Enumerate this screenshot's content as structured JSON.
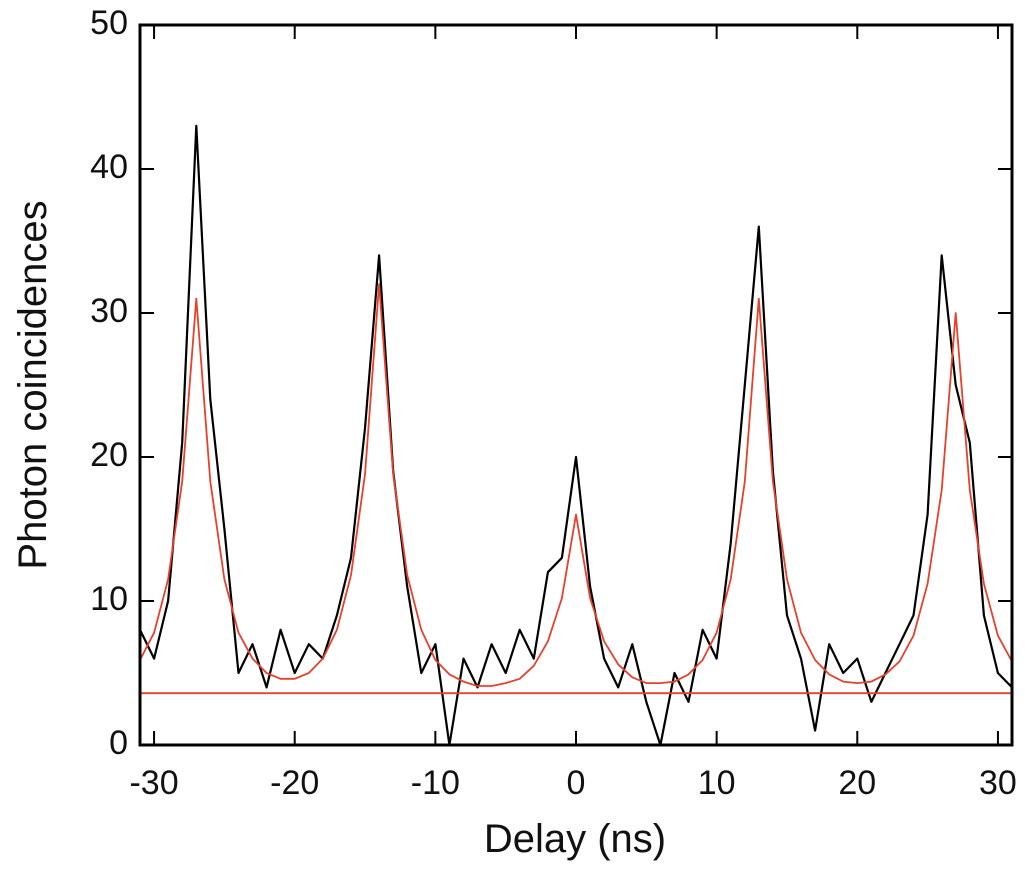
{
  "chart_data": {
    "type": "line",
    "xlabel": "Delay (ns)",
    "ylabel": "Photon coincidences",
    "x": [
      -31,
      -30,
      -29,
      -28,
      -27,
      -26,
      -25,
      -24,
      -23,
      -22,
      -21,
      -20,
      -19,
      -18,
      -17,
      -16,
      -15,
      -14,
      -13,
      -12,
      -11,
      -10,
      -9,
      -8,
      -7,
      -6,
      -5,
      -4,
      -3,
      -2,
      -1,
      0,
      1,
      2,
      3,
      4,
      5,
      6,
      7,
      8,
      9,
      10,
      11,
      12,
      13,
      14,
      15,
      16,
      17,
      18,
      19,
      20,
      21,
      22,
      23,
      24,
      25,
      26,
      27,
      28,
      29,
      30,
      31
    ],
    "series": [
      {
        "color": "#000000",
        "values": [
          8,
          6,
          10,
          21,
          43,
          24,
          15,
          5,
          7,
          4,
          8,
          5,
          7,
          6,
          9,
          13,
          22,
          34,
          19,
          11,
          5,
          7,
          0,
          6,
          4,
          7,
          5,
          8,
          6,
          12,
          13,
          20,
          11,
          6,
          4,
          7,
          3,
          0,
          5,
          3,
          8,
          6,
          14,
          25,
          36,
          19,
          9,
          6,
          1,
          7,
          5,
          6,
          3,
          5,
          7,
          9,
          16,
          34,
          25,
          21,
          9,
          5,
          4
        ]
      },
      {
        "color": "#e8402a",
        "values": [
          5.9,
          7.8,
          11.5,
          18.3,
          31.0,
          18.3,
          11.5,
          7.8,
          6.0,
          5.0,
          4.6,
          4.6,
          5.0,
          6.0,
          8.0,
          11.8,
          18.8,
          32.0,
          18.8,
          11.8,
          8.0,
          5.9,
          4.9,
          4.4,
          4.1,
          4.1,
          4.3,
          4.6,
          5.5,
          7.2,
          10.2,
          16.0,
          10.2,
          7.2,
          5.6,
          4.7,
          4.3,
          4.3,
          4.4,
          4.9,
          5.9,
          7.8,
          11.5,
          18.3,
          31.0,
          18.3,
          11.5,
          7.8,
          5.9,
          4.9,
          4.4,
          4.3,
          4.4,
          4.9,
          5.8,
          7.6,
          11.2,
          17.7,
          30.0,
          17.7,
          11.2,
          7.6,
          5.8
        ]
      },
      {
        "color": "#e8402a",
        "x": [
          -31,
          31
        ],
        "values": [
          3.6,
          3.6
        ]
      }
    ],
    "xlim": [
      -31,
      31
    ],
    "ylim": [
      0,
      50
    ],
    "xticks": [
      -30,
      -20,
      -10,
      0,
      10,
      20,
      30
    ],
    "yticks": [
      0,
      10,
      20,
      30,
      40,
      50
    ]
  }
}
